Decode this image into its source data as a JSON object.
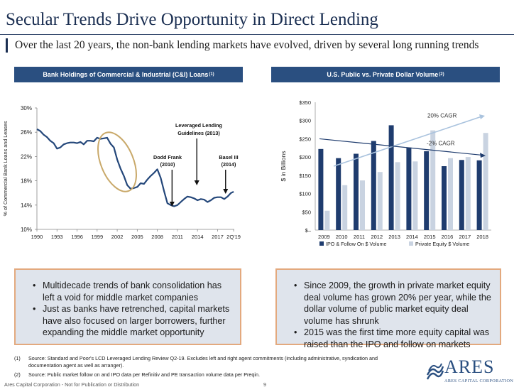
{
  "header": {
    "title": "Secular Trends Drive Opportunity in Direct Lending",
    "subtitle": "Over the last 20 years, the non-bank lending markets have evolved, driven by several long running trends"
  },
  "left_panel": {
    "heading": "Bank Holdings of Commercial & Industrial (C&I) Loans",
    "heading_sup": "(1)",
    "bullets": [
      "Multidecade trends of bank consolidation has left a void for middle market companies",
      "Just as banks have retrenched, capital markets have also focused on larger borrowers, further expanding the middle market opportunity"
    ]
  },
  "right_panel": {
    "heading": "U.S. Public vs. Private Dollar Volume",
    "heading_sup": "(2)",
    "bullets": [
      "Since 2009, the growth in private market equity deal volume has grown 20% per year, while the dollar volume of public market equity deal volume has shrunk",
      "2015 was the first time more equity capital was raised than the IPO and follow on markets"
    ]
  },
  "chart_data": [
    {
      "type": "line",
      "ylabel": "% of Commercial Bank Loans and Leases",
      "ylim": [
        10,
        30
      ],
      "y_ticks": [
        "30%",
        "26%",
        "22%",
        "18%",
        "14%",
        "10%"
      ],
      "x_ticks": [
        "1990",
        "1993",
        "1996",
        "1999",
        "2002",
        "2005",
        "2008",
        "2011",
        "2014",
        "2017",
        "2Q'19"
      ],
      "x": [
        1990.0,
        1990.5,
        1991.0,
        1991.5,
        1992.0,
        1992.5,
        1993.0,
        1993.5,
        1994.0,
        1994.5,
        1995.0,
        1995.5,
        1996.0,
        1996.5,
        1997.0,
        1997.5,
        1998.0,
        1998.5,
        1999.0,
        1999.5,
        2000.0,
        2000.5,
        2001.0,
        2001.5,
        2002.0,
        2002.5,
        2003.0,
        2003.5,
        2004.0,
        2004.5,
        2005.0,
        2005.5,
        2006.0,
        2006.5,
        2007.0,
        2007.5,
        2008.0,
        2008.5,
        2009.0,
        2009.5,
        2010.0,
        2010.5,
        2011.0,
        2011.5,
        2012.0,
        2012.5,
        2013.0,
        2013.5,
        2014.0,
        2014.5,
        2015.0,
        2015.5,
        2016.0,
        2016.5,
        2017.0,
        2017.5,
        2018.0,
        2018.5,
        2019.0,
        2019.4
      ],
      "y": [
        26.5,
        26.2,
        25.6,
        25.2,
        24.6,
        24.2,
        23.3,
        23.5,
        24.0,
        24.2,
        24.3,
        24.3,
        24.2,
        24.4,
        24.0,
        24.6,
        24.6,
        24.5,
        25.1,
        24.9,
        25.0,
        25.1,
        24.1,
        23.5,
        21.5,
        20.0,
        18.8,
        17.3,
        16.7,
        16.8,
        17.0,
        17.6,
        17.5,
        18.2,
        18.8,
        19.3,
        19.9,
        18.5,
        16.3,
        14.3,
        14.0,
        13.8,
        14.0,
        14.5,
        15.0,
        15.4,
        15.3,
        15.1,
        14.8,
        15.0,
        14.9,
        14.5,
        14.8,
        15.2,
        15.3,
        15.3,
        15.0,
        15.4,
        16.0,
        16.2
      ],
      "annotations": [
        {
          "text": [
            "Leveraged Lending",
            "Guidelines (2013)"
          ]
        },
        {
          "text": [
            "Dodd Frank",
            "(2010)"
          ]
        },
        {
          "text": [
            "Basel III",
            "(2014)"
          ]
        }
      ]
    },
    {
      "type": "bar",
      "ylabel": "$ in Billions",
      "ylim": [
        0,
        350
      ],
      "y_ticks": [
        "$350",
        "$300",
        "$250",
        "$200",
        "$150",
        "$100",
        "$50",
        "$–"
      ],
      "categories": [
        "2009",
        "2010",
        "2011",
        "2012",
        "2013",
        "2014",
        "2015",
        "2016",
        "2017",
        "2018"
      ],
      "series": [
        {
          "name": "IPO & Follow On $ Volume",
          "color": "#1f3c6e",
          "values": [
            222,
            197,
            209,
            244,
            287,
            226,
            216,
            175,
            192,
            191
          ]
        },
        {
          "name": "Private Equity $ Volume",
          "color": "#c9d3e1",
          "values": [
            53,
            123,
            136,
            159,
            186,
            188,
            273,
            197,
            200,
            266
          ]
        }
      ],
      "trend_labels": [
        "20% CAGR",
        "-2% CAGR"
      ]
    }
  ],
  "footnotes": [
    {
      "num": "(1)",
      "text": "Source: Standard and Poor's LCD Leveraged Lending Review Q2-19. Excludes left and right agent commitments (including administrative, syndication and documentation agent as well as arranger)."
    },
    {
      "num": "(2)",
      "text": "Source: Public market follow on and IPO data per Refinitiv and PE transaction volume data per Preqin."
    }
  ],
  "footer": {
    "left_text": "Ares Capital Corporation - Not for Publication or Distribution",
    "page_number": "9"
  },
  "logo": {
    "word": "ARES",
    "sub": "ARES CAPITAL CORPORATION"
  },
  "colors": {
    "navy": "#1b2f52",
    "panel_header": "#2a4f80",
    "line": "#24477a",
    "ellipse": "#c9a96a",
    "box_fill": "#dfe4ec",
    "box_border": "#e3a97e"
  }
}
